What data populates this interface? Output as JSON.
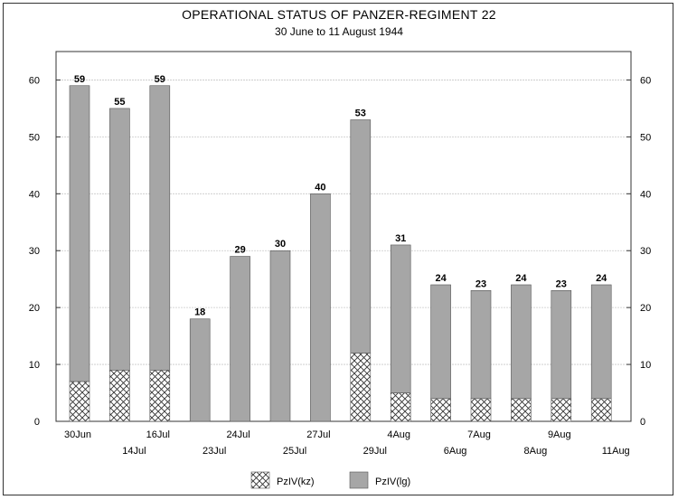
{
  "chart_data": {
    "type": "bar",
    "stacked": true,
    "title": "OPERATIONAL STATUS OF PANZER-REGIMENT 22",
    "subtitle": "30 June to 11 August 1944",
    "xlabel": "",
    "ylabel": "",
    "ylim": [
      0,
      65
    ],
    "yticks": [
      0,
      10,
      20,
      30,
      40,
      50,
      60
    ],
    "grid": true,
    "legend_position": "bottom-center",
    "categories": [
      "30Jun",
      "14Jul",
      "16Jul",
      "23Jul",
      "24Jul",
      "25Jul",
      "27Jul",
      "29Jul",
      "4Aug",
      "6Aug",
      "7Aug",
      "8Aug",
      "9Aug",
      "11Aug"
    ],
    "series": [
      {
        "name": "PzIV(kz)",
        "pattern": "crosshatch",
        "color": "#ffffff",
        "values": [
          7,
          9,
          9,
          0,
          0,
          0,
          0,
          12,
          5,
          4,
          4,
          4,
          4,
          4
        ]
      },
      {
        "name": "PzIV(lg)",
        "pattern": "solid",
        "color": "#a6a6a6",
        "values": [
          52,
          46,
          50,
          18,
          29,
          30,
          40,
          41,
          26,
          20,
          19,
          20,
          19,
          20
        ]
      }
    ],
    "totals": [
      59,
      55,
      59,
      18,
      29,
      30,
      40,
      53,
      31,
      24,
      23,
      24,
      23,
      24
    ]
  }
}
